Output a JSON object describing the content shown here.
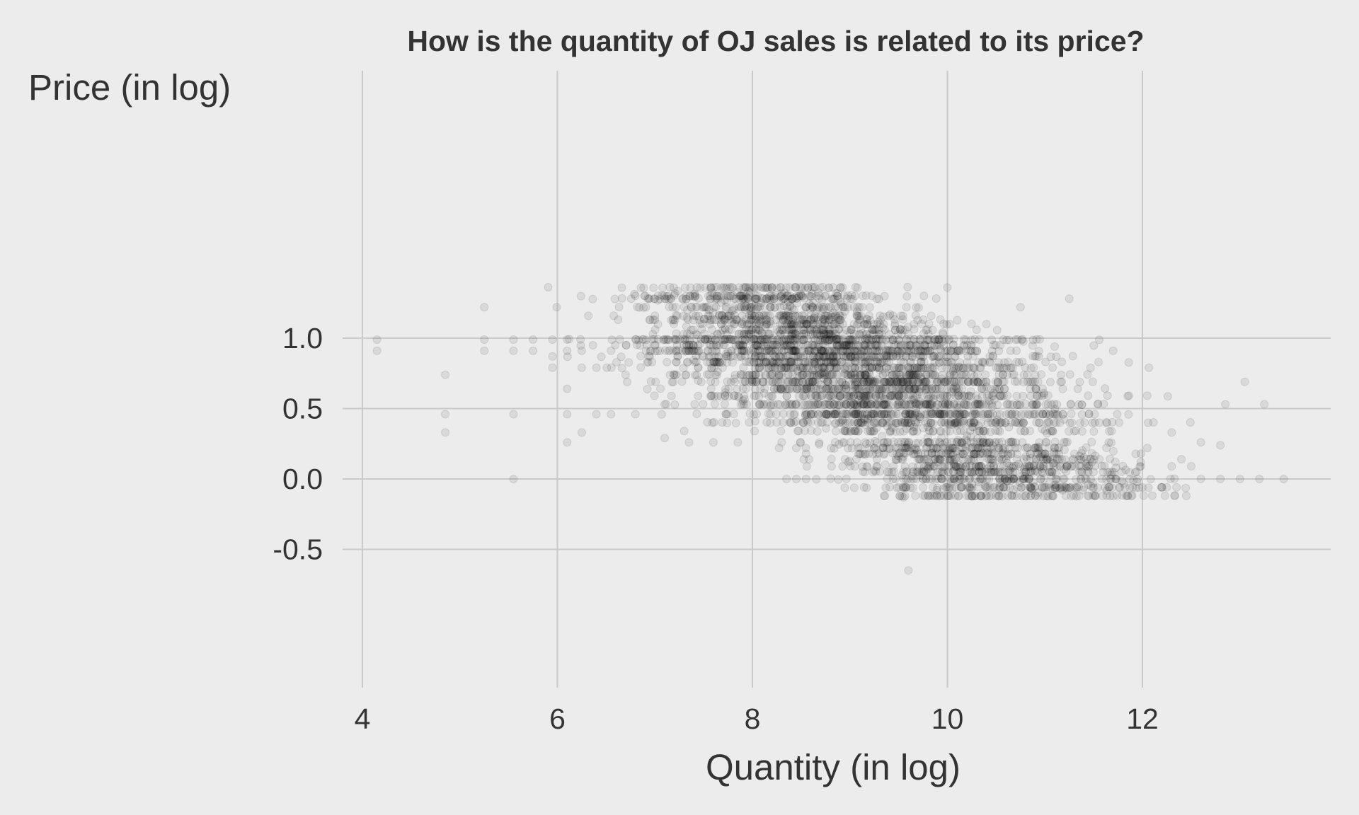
{
  "chart_data": {
    "type": "scatter",
    "title": "How is the quantity of OJ sales is related to its price?",
    "xlabel": "Quantity (in log)",
    "ylabel": "Price (in log)",
    "xlim": [
      3.95,
      13.85
    ],
    "ylim": [
      -0.75,
      1.4
    ],
    "x_ticks": [
      4,
      6,
      8,
      10,
      12
    ],
    "y_ticks": [
      -0.5,
      0.0,
      0.5,
      1.0
    ],
    "x_tick_labels": [
      "4",
      "6",
      "8",
      "10",
      "12"
    ],
    "y_tick_labels": [
      "-0.5",
      "0.0",
      "0.5",
      "1.0"
    ],
    "grid": true,
    "legend": "none",
    "point_color": "#000000",
    "point_opacity": 0.08,
    "price_levels": [
      1.36,
      1.3,
      1.28,
      1.22,
      1.16,
      1.13,
      1.1,
      1.06,
      1.03,
      0.99,
      0.95,
      0.91,
      0.87,
      0.83,
      0.79,
      0.74,
      0.69,
      0.64,
      0.59,
      0.53,
      0.46,
      0.4,
      0.34,
      0.26,
      0.22,
      0.18,
      0.14,
      0.09,
      0.05,
      0.0,
      -0.06,
      -0.12
    ],
    "points": [
      [
        4.15,
        0.99
      ],
      [
        4.15,
        0.91
      ],
      [
        4.85,
        0.74
      ],
      [
        4.85,
        0.46
      ],
      [
        4.85,
        0.33
      ],
      [
        5.25,
        1.22
      ],
      [
        5.25,
        0.99
      ],
      [
        5.25,
        0.91
      ],
      [
        5.55,
        0.99
      ],
      [
        5.55,
        0.91
      ],
      [
        5.55,
        0.46
      ],
      [
        5.55,
        0.0
      ],
      [
        5.75,
        0.99
      ],
      [
        5.75,
        0.91
      ],
      [
        5.95,
        0.99
      ],
      [
        5.95,
        0.87
      ],
      [
        5.95,
        0.79
      ],
      [
        6.1,
        0.99
      ],
      [
        6.1,
        0.91
      ],
      [
        6.1,
        0.64
      ],
      [
        6.1,
        0.46
      ],
      [
        6.1,
        0.26
      ],
      [
        6.25,
        0.91
      ],
      [
        6.25,
        0.79
      ],
      [
        6.25,
        0.33
      ],
      [
        6.4,
        0.46
      ],
      [
        6.4,
        0.79
      ],
      [
        6.55,
        0.91
      ],
      [
        6.55,
        0.46
      ],
      [
        6.7,
        0.74
      ],
      [
        6.8,
        1.3
      ],
      [
        6.8,
        0.46
      ],
      [
        7.0,
        1.16
      ],
      [
        7.0,
        1.13
      ],
      [
        7.1,
        0.29
      ],
      [
        7.1,
        0.53
      ],
      [
        7.3,
        0.34
      ],
      [
        7.35,
        0.26
      ],
      [
        7.6,
        0.26
      ],
      [
        7.85,
        0.26
      ],
      [
        8.05,
        1.36
      ],
      [
        8.3,
        0.26
      ],
      [
        8.35,
        0.0
      ],
      [
        8.45,
        0.0
      ],
      [
        8.45,
        0.22
      ],
      [
        8.55,
        0.0
      ],
      [
        8.55,
        0.18
      ],
      [
        8.95,
        0.14
      ],
      [
        9.05,
        0.09
      ],
      [
        9.25,
        0.06
      ],
      [
        9.35,
        0.18
      ],
      [
        9.5,
        -0.06
      ],
      [
        9.55,
        0.0
      ],
      [
        9.55,
        -0.13
      ],
      [
        9.6,
        -0.65
      ],
      [
        9.7,
        0.14
      ],
      [
        9.75,
        -0.06
      ],
      [
        9.85,
        0.09
      ],
      [
        10.0,
        1.36
      ],
      [
        10.25,
        0.13
      ],
      [
        10.3,
        1.06
      ],
      [
        10.4,
        1.1
      ],
      [
        10.45,
        0.14
      ],
      [
        10.6,
        -0.06
      ],
      [
        10.7,
        0.99
      ],
      [
        10.75,
        1.22
      ],
      [
        10.8,
        0.22
      ],
      [
        10.9,
        0.06
      ],
      [
        11.0,
        -0.06
      ],
      [
        11.1,
        0.94
      ],
      [
        11.2,
        -0.06
      ],
      [
        11.25,
        1.28
      ],
      [
        11.35,
        -0.12
      ],
      [
        11.4,
        -0.06
      ],
      [
        11.45,
        -0.12
      ],
      [
        11.55,
        0.83
      ],
      [
        11.7,
        0.91
      ],
      [
        11.85,
        -0.12
      ],
      [
        11.95,
        0.0
      ],
      [
        12.0,
        -0.06
      ],
      [
        12.05,
        0.22
      ],
      [
        12.2,
        -0.06
      ],
      [
        12.3,
        0.33
      ],
      [
        12.3,
        0.09
      ],
      [
        12.35,
        -0.06
      ],
      [
        12.4,
        0.14
      ],
      [
        12.45,
        -0.12
      ],
      [
        12.5,
        0.09
      ],
      [
        12.6,
        0.26
      ],
      [
        12.6,
        0.0
      ],
      [
        12.8,
        0.0
      ],
      [
        12.8,
        0.24
      ],
      [
        12.85,
        0.53
      ],
      [
        13.0,
        0.0
      ],
      [
        13.05,
        0.69
      ],
      [
        13.2,
        0.0
      ],
      [
        13.25,
        0.53
      ],
      [
        13.45,
        0.0
      ]
    ]
  }
}
